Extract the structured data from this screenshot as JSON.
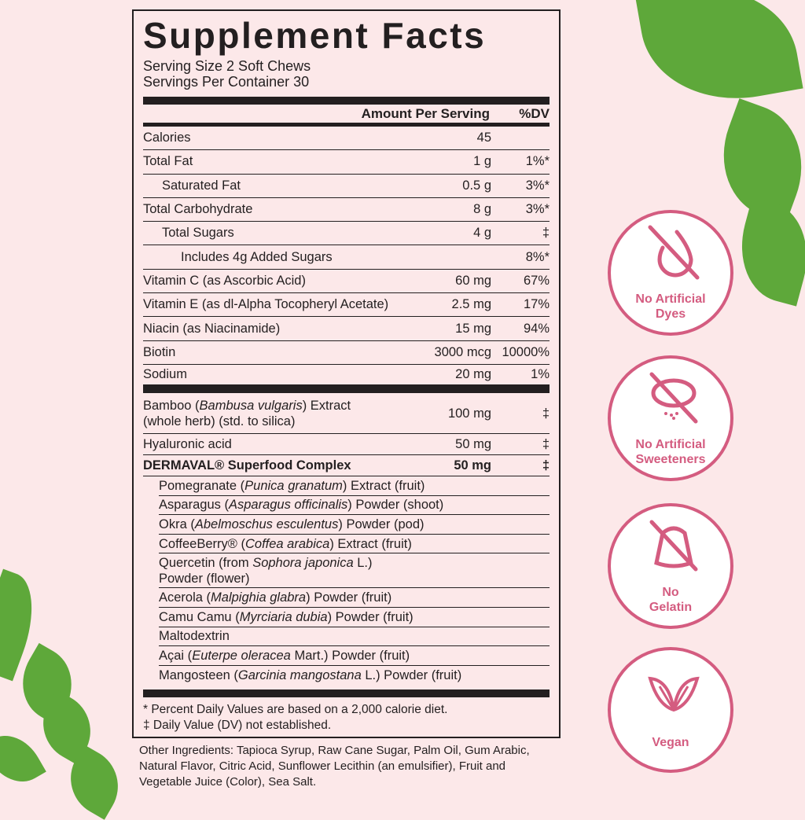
{
  "title": "Supplement Facts",
  "serving_size": "Serving Size 2 Soft Chews",
  "servings_per_container": "Servings Per Container 30",
  "header": {
    "amount": "Amount Per Serving",
    "dv": "%DV"
  },
  "nutrients": [
    {
      "name": "Calories",
      "amount": "45",
      "dv": "",
      "indent": 0
    },
    {
      "name": "Total Fat",
      "amount": "1 g",
      "dv": "1%*",
      "indent": 0
    },
    {
      "name": "Saturated Fat",
      "amount": "0.5 g",
      "dv": "3%*",
      "indent": 1
    },
    {
      "name": "Total Carbohydrate",
      "amount": "8 g",
      "dv": "3%*",
      "indent": 0
    },
    {
      "name": "Total Sugars",
      "amount": "4 g",
      "dv": "‡",
      "indent": 1
    },
    {
      "name": "Includes 4g Added Sugars",
      "amount": "",
      "dv": "8%*",
      "indent": 2
    },
    {
      "name": "Vitamin C (as Ascorbic Acid)",
      "amount": "60 mg",
      "dv": "67%",
      "indent": 0
    },
    {
      "name": "Vitamin E (as dl-Alpha Tocopheryl Acetate)",
      "amount": "2.5 mg",
      "dv": "17%",
      "indent": 0
    },
    {
      "name": "Niacin (as Niacinamide)",
      "amount": "15 mg",
      "dv": "94%",
      "indent": 0
    },
    {
      "name": "Biotin",
      "amount": "3000 mcg",
      "dv": "10000%",
      "indent": 0
    },
    {
      "name": "Sodium",
      "amount": "20 mg",
      "dv": "1%",
      "indent": 0
    }
  ],
  "other_items": [
    {
      "pre": "Bamboo (",
      "it": "Bambusa vulgaris",
      "post": ") Extract",
      "line2": "(whole herb) (std. to silica)",
      "amount": "100 mg",
      "dv": "‡"
    },
    {
      "pre": "Hyaluronic acid",
      "it": "",
      "post": "",
      "line2": "",
      "amount": "50 mg",
      "dv": "‡"
    },
    {
      "pre": "DERMAVAL® Superfood Complex",
      "it": "",
      "post": "",
      "line2": "",
      "amount": "50 mg",
      "dv": "‡",
      "bold": true
    }
  ],
  "complex": [
    {
      "pre": "Pomegranate (",
      "it": "Punica granatum",
      "post": ") Extract (fruit)"
    },
    {
      "pre": "Asparagus (",
      "it": "Asparagus officinalis",
      "post": ") Powder (shoot)"
    },
    {
      "pre": "Okra (",
      "it": "Abelmoschus esculentus",
      "post": ") Powder (pod)"
    },
    {
      "pre": "CoffeeBerry® (",
      "it": "Coffea arabica",
      "post": ") Extract (fruit)"
    },
    {
      "pre": "Quercetin (from ",
      "it": "Sophora japonica",
      "post": " L.)",
      "line2": "Powder (flower)"
    },
    {
      "pre": "Acerola (",
      "it": "Malpighia glabra",
      "post": ") Powder (fruit)"
    },
    {
      "pre": "Camu Camu (",
      "it": "Myrciaria dubia",
      "post": ") Powder (fruit)"
    },
    {
      "pre": "Maltodextrin",
      "it": "",
      "post": ""
    },
    {
      "pre": "Açai (",
      "it": "Euterpe oleracea",
      "post": " Mart.) Powder (fruit)"
    },
    {
      "pre": "Mangosteen (",
      "it": "Garcinia mangostana",
      "post": " L.) Powder (fruit)"
    }
  ],
  "footnotes": [
    "* Percent Daily Values are based on a 2,000 calorie diet.",
    "‡ Daily Value (DV) not established."
  ],
  "other_ingredients": "Other Ingredients: Tapioca Syrup, Raw Cane Sugar, Palm Oil, Gum Arabic, Natural Flavor, Citric Acid, Sunflower Lecithin (an emulsifier), Fruit and Vegetable Juice (Color), Sea Salt.",
  "badges": [
    {
      "icon": "no-dye-drop-icon",
      "l1": "No Artificial",
      "l2": "Dyes"
    },
    {
      "icon": "no-sweetener-icon",
      "l1": "No Artificial",
      "l2": "Sweeteners"
    },
    {
      "icon": "no-gelatin-icon",
      "l1": "No",
      "l2": "Gelatin"
    },
    {
      "icon": "vegan-leaf-icon",
      "l1": "",
      "l2": "Vegan"
    }
  ],
  "colors": {
    "background": "#fce8e9",
    "accent": "#d45c80",
    "text": "#231f20",
    "leaf": "#5ea83a"
  }
}
